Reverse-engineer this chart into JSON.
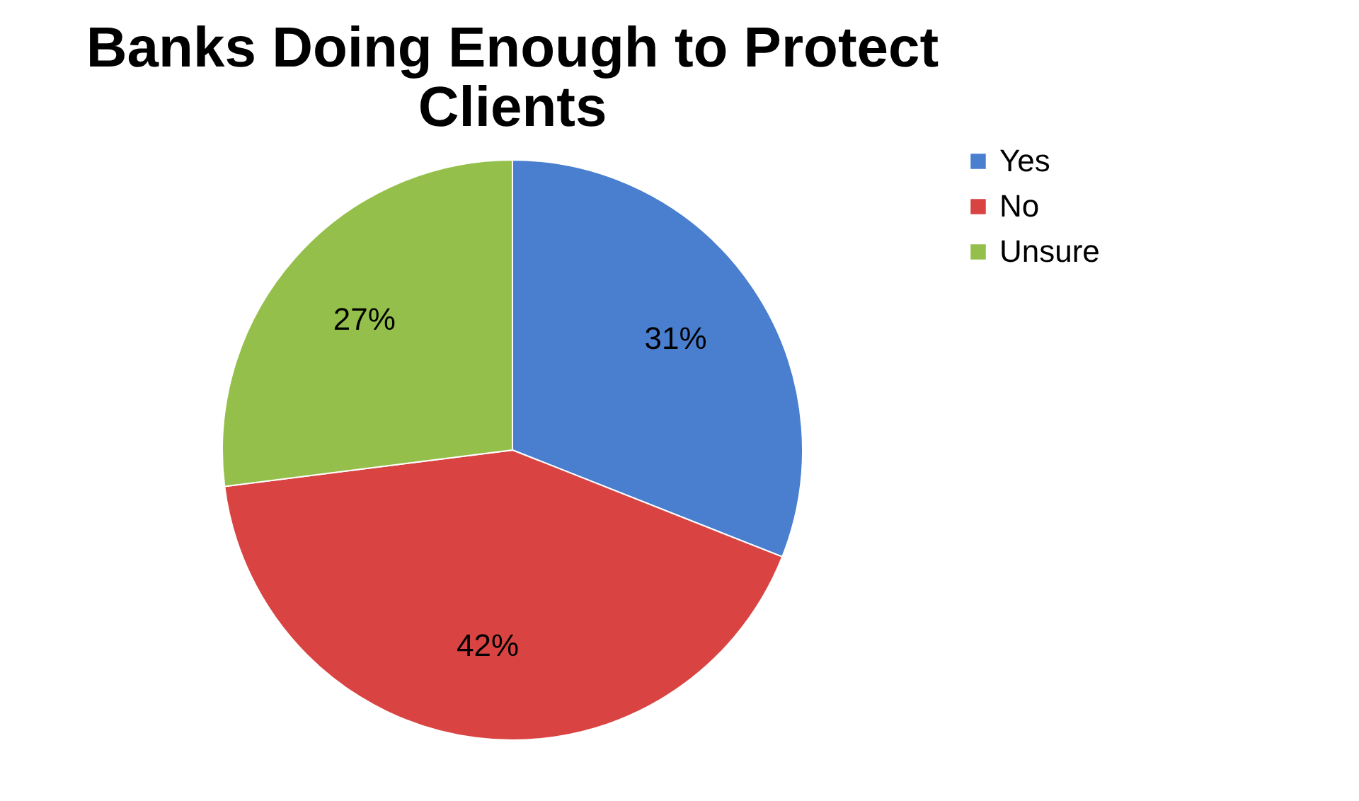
{
  "chart_data": {
    "type": "pie",
    "title": "Banks Doing Enough to Protect Clients",
    "categories": [
      "Yes",
      "No",
      "Unsure"
    ],
    "values": [
      31,
      42,
      27
    ],
    "colors": [
      "#4a7fcf",
      "#d94443",
      "#94bf4a"
    ],
    "value_labels": [
      "31%",
      "42%",
      "27%"
    ],
    "legend": "right"
  }
}
